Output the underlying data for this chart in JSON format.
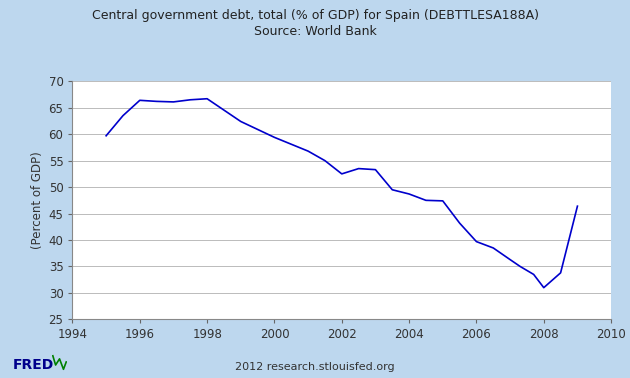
{
  "title_line1": "Central government debt, total (% of GDP) for Spain (DEBTTLESA188A)",
  "title_line2": "Source: World Bank",
  "ylabel": "(Percent of GDP)",
  "footer": "2012 research.stlouisfed.org",
  "xlim": [
    1994,
    2010
  ],
  "ylim": [
    25,
    70
  ],
  "yticks": [
    25,
    30,
    35,
    40,
    45,
    50,
    55,
    60,
    65,
    70
  ],
  "xticks": [
    1994,
    1996,
    1998,
    2000,
    2002,
    2004,
    2006,
    2008,
    2010
  ],
  "years": [
    1995,
    1995.5,
    1996,
    1996.5,
    1997,
    1997.5,
    1998,
    1999,
    2000,
    2001,
    2001.5,
    2002,
    2002.5,
    2003,
    2003.5,
    2004,
    2004.5,
    2005,
    2005.5,
    2006,
    2006.5,
    2007,
    2007.3,
    2007.7,
    2008,
    2008.5,
    2009
  ],
  "values": [
    59.7,
    63.5,
    66.4,
    66.2,
    66.1,
    66.5,
    66.7,
    62.4,
    59.4,
    56.8,
    55.0,
    52.5,
    53.5,
    53.3,
    49.5,
    48.7,
    47.5,
    47.4,
    43.2,
    39.7,
    38.5,
    36.3,
    35.0,
    33.5,
    31.0,
    33.8,
    46.4
  ],
  "line_color": "#0000CC",
  "bg_plot": "#FFFFFF",
  "bg_outer": "#BDD7EE",
  "grid_color": "#BBBBBB",
  "title_color": "#222222",
  "line_width": 1.2,
  "title_fontsize": 9.0,
  "tick_fontsize": 8.5,
  "ylabel_fontsize": 8.5
}
